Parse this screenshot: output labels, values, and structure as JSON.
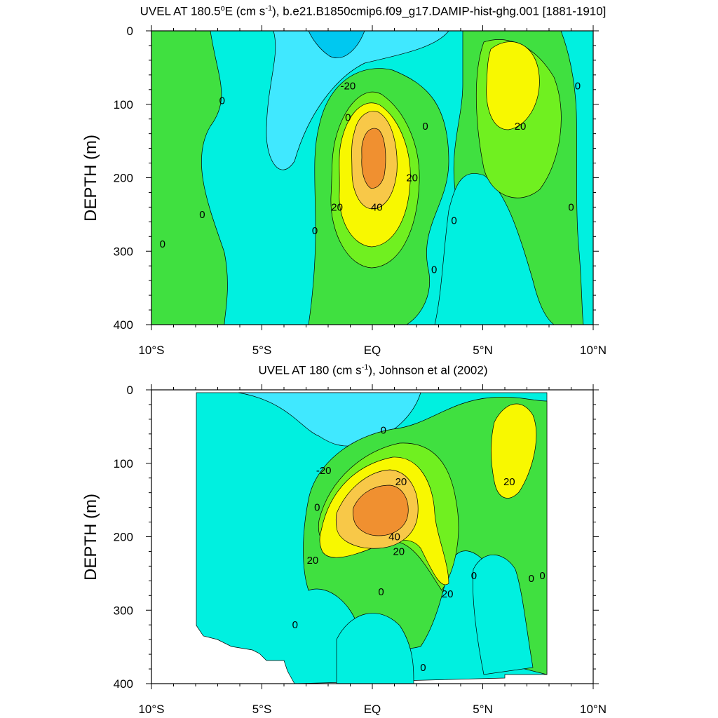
{
  "colors": {
    "level_m20": "#00c8f0",
    "level_m10": "#40e8ff",
    "level_0": "#00f0e0",
    "level_10": "#40e040",
    "level_10b": "#70f020",
    "level_20": "#f8f800",
    "level_30": "#f8c848",
    "level_40": "#f09030",
    "contour": "#000000"
  },
  "chart_data": [
    {
      "type": "heatmap",
      "title": "UVEL AT 180.5°E (cm s-1), b.e21.B1850cmip6.f09_g17.DAMIP-hist-ghg.001 [1881-1910]",
      "title_main": "UVEL AT 180.5",
      "title_deg": "o",
      "title_mid": "E (cm s",
      "title_sup": "-1",
      "title_end": "), b.e21.B1850cmip6.f09_g17.DAMIP-hist-ghg.001 [1881-1910]",
      "xlabel": "",
      "ylabel": "DEPTH (m)",
      "xlim": [
        -10,
        10
      ],
      "ylim": [
        400,
        0
      ],
      "x_ticks": [
        -10,
        -5,
        0,
        5,
        10
      ],
      "x_tick_labels": [
        "10°S",
        "5°S",
        "EQ",
        "5°N",
        "10°N"
      ],
      "y_ticks": [
        0,
        100,
        200,
        300,
        400
      ],
      "y_tick_labels": [
        "0",
        "100",
        "200",
        "300",
        "400"
      ],
      "contour_labels": [
        {
          "text": "0",
          "x": -6.8,
          "y": 95
        },
        {
          "text": "0",
          "x": -7.7,
          "y": 250
        },
        {
          "text": "0",
          "x": -9.5,
          "y": 290
        },
        {
          "text": "-20",
          "x": -1.1,
          "y": 75
        },
        {
          "text": "0",
          "x": -1.1,
          "y": 118
        },
        {
          "text": "0",
          "x": 2.4,
          "y": 130
        },
        {
          "text": "0",
          "x": -2.6,
          "y": 272
        },
        {
          "text": "20",
          "x": -1.6,
          "y": 240
        },
        {
          "text": "40",
          "x": 0.2,
          "y": 240
        },
        {
          "text": "20",
          "x": 1.8,
          "y": 200
        },
        {
          "text": "0",
          "x": 3.7,
          "y": 258
        },
        {
          "text": "0",
          "x": 2.8,
          "y": 325
        },
        {
          "text": "20",
          "x": 6.7,
          "y": 130
        },
        {
          "text": "0",
          "x": 9.3,
          "y": 75
        },
        {
          "text": "0",
          "x": 9.0,
          "y": 240
        }
      ]
    },
    {
      "type": "heatmap",
      "title": "UVEL AT 180 (cm s-1), Johnson et al (2002)",
      "title_main": "UVEL AT 180",
      "title_deg": "",
      "title_mid": " (cm s",
      "title_sup": "-1",
      "title_end": "), Johnson et al (2002)",
      "xlabel": "",
      "ylabel": "DEPTH (m)",
      "xlim": [
        -10,
        10
      ],
      "ylim": [
        400,
        0
      ],
      "x_ticks": [
        -10,
        -5,
        0,
        5,
        10
      ],
      "x_tick_labels": [
        "10°S",
        "5°S",
        "EQ",
        "5°N",
        "10°N"
      ],
      "y_ticks": [
        0,
        100,
        200,
        300,
        400
      ],
      "y_tick_labels": [
        "0",
        "100",
        "200",
        "300",
        "400"
      ],
      "contour_labels": [
        {
          "text": "0",
          "x": 0.5,
          "y": 55
        },
        {
          "text": "-20",
          "x": -2.2,
          "y": 110
        },
        {
          "text": "20",
          "x": 1.3,
          "y": 125
        },
        {
          "text": "0",
          "x": -2.5,
          "y": 160
        },
        {
          "text": "20",
          "x": 6.2,
          "y": 125
        },
        {
          "text": "40",
          "x": 1.0,
          "y": 200
        },
        {
          "text": "20",
          "x": 1.2,
          "y": 220
        },
        {
          "text": "20",
          "x": -2.7,
          "y": 232
        },
        {
          "text": "0",
          "x": 0.4,
          "y": 275
        },
        {
          "text": "20",
          "x": 3.4,
          "y": 278
        },
        {
          "text": "0",
          "x": 4.6,
          "y": 253
        },
        {
          "text": "0",
          "x": 7.2,
          "y": 257
        },
        {
          "text": "0",
          "x": 7.7,
          "y": 253
        },
        {
          "text": "0",
          "x": -3.5,
          "y": 320
        },
        {
          "text": "0",
          "x": 2.3,
          "y": 378
        }
      ]
    }
  ]
}
